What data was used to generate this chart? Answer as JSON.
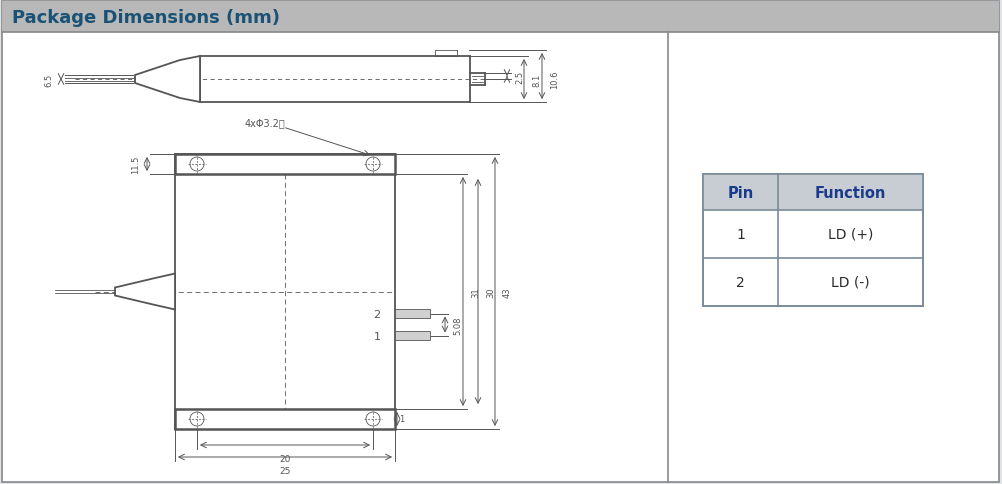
{
  "title": "Package Dimensions (mm)",
  "title_color": "#1a5276",
  "header_bg": "#b8b8b8",
  "border_color": "#888888",
  "drawing_color": "#555555",
  "dim_color": "#555555",
  "table_header_bg": "#c8cdd4",
  "table_border_color": "#7a8a99",
  "table_blue": "#1a3a8c",
  "table_pins": [
    "1",
    "2"
  ],
  "table_functions": [
    "LD (+)",
    "LD (-)"
  ],
  "dim_6p5": "6.5",
  "dim_2p5": "2.5",
  "dim_8p1": "8.1",
  "dim_10p6": "10.6",
  "dim_11p5": "11.5",
  "dim_5p08": "5.08",
  "dim_31": "31",
  "dim_30": "30",
  "dim_43": "43",
  "dim_20": "20",
  "dim_25": "25",
  "dim_1": "1",
  "dim_holes": "4xΦ3.2通",
  "background_color": "#e0e4e8"
}
